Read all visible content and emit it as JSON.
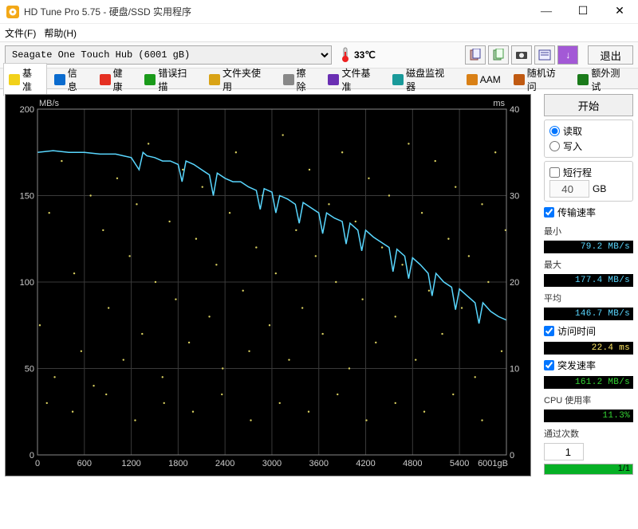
{
  "window": {
    "title": "HD Tune Pro 5.75 - 硬盘/SSD 实用程序"
  },
  "menu": {
    "file": "文件(F)",
    "help": "帮助(H)"
  },
  "toolbar": {
    "drive": "Seagate One Touch Hub (6001 gB)",
    "temp": "33℃",
    "exit": "退出"
  },
  "tabs": [
    {
      "label": "基准",
      "icon": "#f2d11a"
    },
    {
      "label": "信息",
      "icon": "#0a6bce"
    },
    {
      "label": "健康",
      "icon": "#e53022"
    },
    {
      "label": "错误扫描",
      "icon": "#1a9a1a"
    },
    {
      "label": "文件夹使用",
      "icon": "#d9a316"
    },
    {
      "label": "擦除",
      "icon": "#888888"
    },
    {
      "label": "文件基准",
      "icon": "#6a2fb3"
    },
    {
      "label": "磁盘监视器",
      "icon": "#1a9a9a"
    },
    {
      "label": "AAM",
      "icon": "#d98016"
    },
    {
      "label": "随机访问",
      "icon": "#c05a12"
    },
    {
      "label": "额外测试",
      "icon": "#1a7a1a"
    }
  ],
  "chart": {
    "y1_label": "MB/s",
    "y1_max": 200,
    "y1_ticks": [
      200,
      150,
      100,
      50,
      0
    ],
    "y2_label": "ms",
    "y2_max": 40,
    "y2_ticks": [
      40,
      30,
      20,
      10,
      0
    ],
    "x_ticks": [
      0,
      600,
      1200,
      1800,
      2400,
      3000,
      3600,
      4200,
      4800,
      5400
    ],
    "x_unit": "6001gB",
    "line_color": "#59d7ff",
    "access_color": "#d9d060",
    "grid_color": "#3a3a3a",
    "transfer": [
      [
        0,
        175
      ],
      [
        200,
        176
      ],
      [
        400,
        175
      ],
      [
        600,
        175
      ],
      [
        800,
        174
      ],
      [
        1000,
        174
      ],
      [
        1100,
        173
      ],
      [
        1200,
        172
      ],
      [
        1300,
        165
      ],
      [
        1350,
        175
      ],
      [
        1400,
        173
      ],
      [
        1500,
        172
      ],
      [
        1600,
        170
      ],
      [
        1700,
        170
      ],
      [
        1800,
        168
      ],
      [
        1850,
        158
      ],
      [
        1900,
        170
      ],
      [
        2000,
        168
      ],
      [
        2100,
        165
      ],
      [
        2200,
        162
      ],
      [
        2250,
        150
      ],
      [
        2300,
        163
      ],
      [
        2400,
        160
      ],
      [
        2500,
        158
      ],
      [
        2600,
        158
      ],
      [
        2700,
        155
      ],
      [
        2800,
        153
      ],
      [
        2850,
        142
      ],
      [
        2900,
        154
      ],
      [
        3000,
        152
      ],
      [
        3050,
        140
      ],
      [
        3100,
        150
      ],
      [
        3200,
        148
      ],
      [
        3300,
        145
      ],
      [
        3350,
        134
      ],
      [
        3400,
        146
      ],
      [
        3500,
        143
      ],
      [
        3600,
        140
      ],
      [
        3650,
        128
      ],
      [
        3700,
        140
      ],
      [
        3800,
        137
      ],
      [
        3900,
        135
      ],
      [
        3950,
        122
      ],
      [
        4000,
        134
      ],
      [
        4100,
        130
      ],
      [
        4150,
        118
      ],
      [
        4200,
        130
      ],
      [
        4300,
        126
      ],
      [
        4400,
        123
      ],
      [
        4500,
        120
      ],
      [
        4550,
        106
      ],
      [
        4600,
        119
      ],
      [
        4700,
        115
      ],
      [
        4750,
        102
      ],
      [
        4800,
        114
      ],
      [
        4900,
        110
      ],
      [
        5000,
        105
      ],
      [
        5050,
        92
      ],
      [
        5100,
        105
      ],
      [
        5200,
        100
      ],
      [
        5300,
        97
      ],
      [
        5350,
        84
      ],
      [
        5400,
        96
      ],
      [
        5500,
        92
      ],
      [
        5600,
        88
      ],
      [
        5650,
        76
      ],
      [
        5700,
        88
      ],
      [
        5800,
        83
      ],
      [
        5900,
        80
      ],
      [
        6000,
        78
      ]
    ],
    "access_points": [
      [
        30,
        15
      ],
      [
        150,
        28
      ],
      [
        220,
        9
      ],
      [
        310,
        34
      ],
      [
        470,
        21
      ],
      [
        560,
        12
      ],
      [
        680,
        30
      ],
      [
        720,
        8
      ],
      [
        840,
        26
      ],
      [
        910,
        17
      ],
      [
        1020,
        32
      ],
      [
        1100,
        11
      ],
      [
        1180,
        23
      ],
      [
        1270,
        29
      ],
      [
        1340,
        14
      ],
      [
        1420,
        36
      ],
      [
        1510,
        20
      ],
      [
        1600,
        9
      ],
      [
        1690,
        27
      ],
      [
        1770,
        18
      ],
      [
        1860,
        33
      ],
      [
        1940,
        13
      ],
      [
        2030,
        25
      ],
      [
        2110,
        31
      ],
      [
        2200,
        16
      ],
      [
        2290,
        22
      ],
      [
        2370,
        10
      ],
      [
        2460,
        28
      ],
      [
        2540,
        35
      ],
      [
        2630,
        19
      ],
      [
        2710,
        12
      ],
      [
        2800,
        24
      ],
      [
        2880,
        30
      ],
      [
        2970,
        15
      ],
      [
        3050,
        21
      ],
      [
        3140,
        37
      ],
      [
        3220,
        11
      ],
      [
        3310,
        26
      ],
      [
        3390,
        17
      ],
      [
        3480,
        33
      ],
      [
        3560,
        23
      ],
      [
        3650,
        14
      ],
      [
        3730,
        29
      ],
      [
        3820,
        20
      ],
      [
        3900,
        35
      ],
      [
        3990,
        10
      ],
      [
        4070,
        27
      ],
      [
        4160,
        18
      ],
      [
        4240,
        32
      ],
      [
        4330,
        13
      ],
      [
        4410,
        24
      ],
      [
        4500,
        30
      ],
      [
        4580,
        16
      ],
      [
        4670,
        22
      ],
      [
        4750,
        36
      ],
      [
        4840,
        11
      ],
      [
        4920,
        28
      ],
      [
        5010,
        19
      ],
      [
        5090,
        34
      ],
      [
        5180,
        14
      ],
      [
        5260,
        25
      ],
      [
        5350,
        31
      ],
      [
        5430,
        17
      ],
      [
        5520,
        23
      ],
      [
        5600,
        9
      ],
      [
        5690,
        29
      ],
      [
        5770,
        20
      ],
      [
        5860,
        35
      ],
      [
        5940,
        12
      ],
      [
        5990,
        26
      ],
      [
        120,
        6
      ],
      [
        450,
        5
      ],
      [
        880,
        7
      ],
      [
        1250,
        4
      ],
      [
        1620,
        6
      ],
      [
        1990,
        5
      ],
      [
        2360,
        7
      ],
      [
        2730,
        4
      ],
      [
        3100,
        6
      ],
      [
        3470,
        5
      ],
      [
        3840,
        7
      ],
      [
        4210,
        4
      ],
      [
        4580,
        6
      ],
      [
        4950,
        5
      ],
      [
        5320,
        7
      ],
      [
        5690,
        4
      ]
    ]
  },
  "side": {
    "start": "开始",
    "read": "读取",
    "write": "写入",
    "shortstroke": "短行程",
    "stroke_val": "40",
    "stroke_unit": "GB",
    "transfer_rate": "传输速率",
    "min_l": "最小",
    "min_v": "79.2 MB/s",
    "max_l": "最大",
    "max_v": "177.4 MB/s",
    "avg_l": "平均",
    "avg_v": "146.7 MB/s",
    "access_time": "访问时间",
    "access_v": "22.4 ms",
    "burst": "突发速率",
    "burst_v": "161.2 MB/s",
    "cpu_l": "CPU 使用率",
    "cpu_v": "11.3%",
    "pass_l": "通过次数",
    "pass_v": "1",
    "progress": "1/1"
  }
}
